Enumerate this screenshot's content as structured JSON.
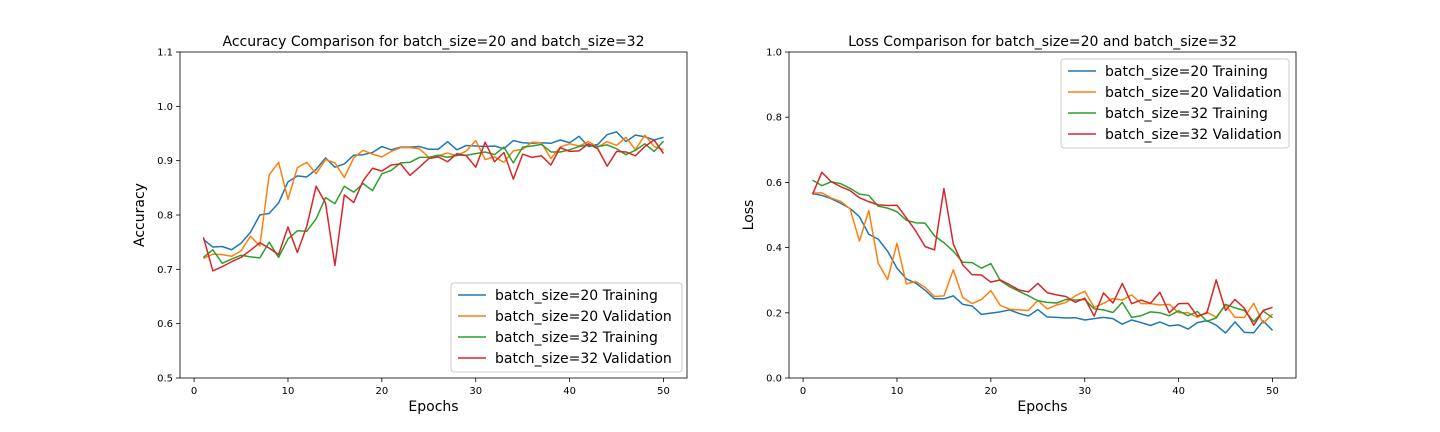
{
  "chart_data": [
    {
      "type": "line",
      "title": "Accuracy Comparison for batch_size=20 and batch_size=32",
      "xlabel": "Epochs",
      "ylabel": "Accuracy",
      "xlim": [
        -1.5,
        52.5
      ],
      "ylim": [
        0.5,
        1.1
      ],
      "xticks": [
        0,
        10,
        20,
        30,
        40,
        50
      ],
      "yticks": [
        0.5,
        0.6,
        0.7,
        0.8,
        0.9,
        1.0,
        1.1
      ],
      "ytick_labels": [
        "0.5",
        "0.6",
        "0.7",
        "0.8",
        "0.9",
        "1.0",
        "1.1"
      ],
      "legend_position": "lower-right",
      "grid": false,
      "x": [
        1,
        2,
        3,
        4,
        5,
        6,
        7,
        8,
        9,
        10,
        11,
        12,
        13,
        14,
        15,
        16,
        17,
        18,
        19,
        20,
        21,
        22,
        23,
        24,
        25,
        26,
        27,
        28,
        29,
        30,
        31,
        32,
        33,
        34,
        35,
        36,
        37,
        38,
        39,
        40,
        41,
        42,
        43,
        44,
        45,
        46,
        47,
        48,
        49,
        50
      ],
      "series": [
        {
          "name": "batch_size=20 Training",
          "color": "#1f77b4",
          "values": [
            0.755,
            0.741,
            0.742,
            0.736,
            0.748,
            0.768,
            0.8,
            0.803,
            0.822,
            0.861,
            0.872,
            0.87,
            0.884,
            0.905,
            0.888,
            0.894,
            0.91,
            0.911,
            0.915,
            0.926,
            0.92,
            0.925,
            0.925,
            0.926,
            0.921,
            0.921,
            0.935,
            0.92,
            0.928,
            0.927,
            0.926,
            0.927,
            0.922,
            0.937,
            0.933,
            0.932,
            0.933,
            0.932,
            0.938,
            0.933,
            0.945,
            0.926,
            0.93,
            0.948,
            0.953,
            0.935,
            0.947,
            0.944,
            0.938,
            0.943
          ]
        },
        {
          "name": "batch_size=20 Validation",
          "color": "#ff7f0e",
          "values": [
            0.72,
            0.728,
            0.727,
            0.724,
            0.734,
            0.761,
            0.743,
            0.874,
            0.897,
            0.829,
            0.887,
            0.897,
            0.876,
            0.902,
            0.896,
            0.869,
            0.905,
            0.919,
            0.912,
            0.907,
            0.917,
            0.924,
            0.924,
            0.922,
            0.906,
            0.909,
            0.914,
            0.909,
            0.918,
            0.937,
            0.902,
            0.907,
            0.897,
            0.918,
            0.921,
            0.934,
            0.933,
            0.904,
            0.925,
            0.931,
            0.927,
            0.935,
            0.925,
            0.935,
            0.928,
            0.943,
            0.92,
            0.947,
            0.926,
            0.92
          ]
        },
        {
          "name": "batch_size=32 Training",
          "color": "#2ca02c",
          "values": [
            0.722,
            0.736,
            0.711,
            0.719,
            0.726,
            0.723,
            0.721,
            0.75,
            0.722,
            0.756,
            0.771,
            0.77,
            0.793,
            0.832,
            0.821,
            0.853,
            0.842,
            0.858,
            0.845,
            0.876,
            0.882,
            0.896,
            0.897,
            0.906,
            0.906,
            0.91,
            0.906,
            0.91,
            0.91,
            0.913,
            0.916,
            0.911,
            0.925,
            0.896,
            0.925,
            0.927,
            0.93,
            0.916,
            0.916,
            0.92,
            0.926,
            0.929,
            0.926,
            0.929,
            0.922,
            0.911,
            0.919,
            0.931,
            0.917,
            0.936
          ]
        },
        {
          "name": "batch_size=32 Validation",
          "color": "#d62728",
          "values": [
            0.759,
            0.697,
            0.705,
            0.714,
            0.722,
            0.735,
            0.749,
            0.739,
            0.727,
            0.778,
            0.731,
            0.779,
            0.853,
            0.822,
            0.707,
            0.837,
            0.823,
            0.863,
            0.886,
            0.881,
            0.892,
            0.894,
            0.873,
            0.888,
            0.904,
            0.907,
            0.898,
            0.913,
            0.909,
            0.888,
            0.934,
            0.898,
            0.915,
            0.866,
            0.912,
            0.906,
            0.909,
            0.892,
            0.924,
            0.917,
            0.918,
            0.931,
            0.922,
            0.89,
            0.917,
            0.916,
            0.909,
            0.926,
            0.938,
            0.913
          ]
        }
      ]
    },
    {
      "type": "line",
      "title": "Loss Comparison for batch_size=20 and batch_size=32",
      "xlabel": "Epochs",
      "ylabel": "Loss",
      "xlim": [
        -1.5,
        52.5
      ],
      "ylim": [
        0.0,
        1.0
      ],
      "xticks": [
        0,
        10,
        20,
        30,
        40,
        50
      ],
      "yticks": [
        0.0,
        0.2,
        0.4,
        0.6,
        0.8,
        1.0
      ],
      "ytick_labels": [
        "0.0",
        "0.2",
        "0.4",
        "0.6",
        "0.8",
        "1.0"
      ],
      "legend_position": "upper-right",
      "grid": false,
      "x": [
        1,
        2,
        3,
        4,
        5,
        6,
        7,
        8,
        9,
        10,
        11,
        12,
        13,
        14,
        15,
        16,
        17,
        18,
        19,
        20,
        21,
        22,
        23,
        24,
        25,
        26,
        27,
        28,
        29,
        30,
        31,
        32,
        33,
        34,
        35,
        36,
        37,
        38,
        39,
        40,
        41,
        42,
        43,
        44,
        45,
        46,
        47,
        48,
        49,
        50
      ],
      "series": [
        {
          "name": "batch_size=20 Training",
          "color": "#1f77b4",
          "values": [
            0.566,
            0.56,
            0.55,
            0.536,
            0.52,
            0.495,
            0.441,
            0.426,
            0.389,
            0.337,
            0.304,
            0.291,
            0.269,
            0.243,
            0.243,
            0.252,
            0.226,
            0.221,
            0.195,
            0.199,
            0.203,
            0.209,
            0.198,
            0.19,
            0.21,
            0.187,
            0.186,
            0.184,
            0.185,
            0.178,
            0.182,
            0.186,
            0.182,
            0.165,
            0.178,
            0.17,
            0.161,
            0.172,
            0.16,
            0.163,
            0.15,
            0.17,
            0.176,
            0.162,
            0.138,
            0.172,
            0.14,
            0.139,
            0.175,
            0.146
          ]
        },
        {
          "name": "batch_size=20 Validation",
          "color": "#ff7f0e",
          "values": [
            0.567,
            0.568,
            0.552,
            0.542,
            0.519,
            0.42,
            0.514,
            0.352,
            0.302,
            0.413,
            0.289,
            0.296,
            0.278,
            0.25,
            0.252,
            0.332,
            0.247,
            0.228,
            0.241,
            0.268,
            0.223,
            0.211,
            0.209,
            0.207,
            0.238,
            0.212,
            0.224,
            0.232,
            0.252,
            0.266,
            0.217,
            0.229,
            0.244,
            0.239,
            0.255,
            0.228,
            0.228,
            0.224,
            0.226,
            0.2,
            0.2,
            0.186,
            0.202,
            0.187,
            0.224,
            0.186,
            0.186,
            0.229,
            0.168,
            0.196
          ]
        },
        {
          "name": "batch_size=32 Training",
          "color": "#2ca02c",
          "values": [
            0.607,
            0.59,
            0.602,
            0.596,
            0.582,
            0.564,
            0.56,
            0.527,
            0.521,
            0.51,
            0.484,
            0.476,
            0.475,
            0.436,
            0.415,
            0.389,
            0.355,
            0.354,
            0.337,
            0.351,
            0.299,
            0.28,
            0.266,
            0.252,
            0.237,
            0.232,
            0.23,
            0.241,
            0.239,
            0.241,
            0.212,
            0.209,
            0.201,
            0.232,
            0.186,
            0.191,
            0.203,
            0.2,
            0.191,
            0.206,
            0.191,
            0.204,
            0.174,
            0.184,
            0.226,
            0.215,
            0.207,
            0.173,
            0.205,
            0.185
          ]
        },
        {
          "name": "batch_size=32 Validation",
          "color": "#d62728",
          "values": [
            0.563,
            0.631,
            0.602,
            0.587,
            0.575,
            0.553,
            0.541,
            0.531,
            0.529,
            0.53,
            0.491,
            0.451,
            0.403,
            0.393,
            0.581,
            0.411,
            0.347,
            0.317,
            0.316,
            0.294,
            0.301,
            0.286,
            0.27,
            0.264,
            0.29,
            0.262,
            0.255,
            0.25,
            0.232,
            0.245,
            0.19,
            0.261,
            0.23,
            0.29,
            0.228,
            0.239,
            0.229,
            0.263,
            0.2,
            0.228,
            0.229,
            0.19,
            0.199,
            0.301,
            0.207,
            0.241,
            0.214,
            0.162,
            0.207,
            0.217
          ]
        }
      ]
    }
  ]
}
